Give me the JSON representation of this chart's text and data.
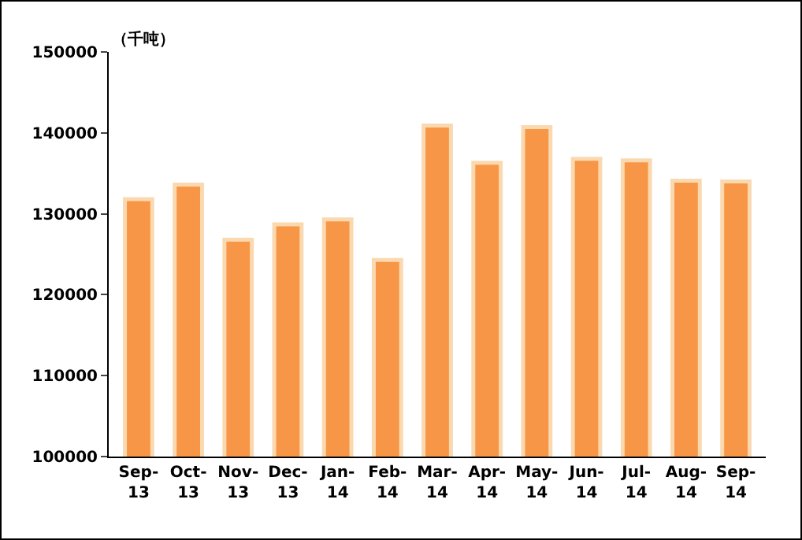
{
  "chart_data": {
    "type": "bar",
    "ylabel": "（千吨）",
    "categories": [
      "Sep-\n13",
      "Oct-\n13",
      "Nov-\n13",
      "Dec-\n13",
      "Jan-\n14",
      "Feb-\n14",
      "Mar-\n14",
      "Apr-\n14",
      "May-\n14",
      "Jun-\n14",
      "Jul-\n14",
      "Aug-\n14",
      "Sep-\n14"
    ],
    "values": [
      131800,
      133600,
      126800,
      128700,
      129300,
      124300,
      140900,
      136300,
      140700,
      136800,
      136600,
      134100,
      134000
    ],
    "color": "#f79646",
    "ylim": [
      100000,
      150000
    ],
    "yticks": [
      100000,
      110000,
      120000,
      130000,
      140000,
      150000
    ],
    "grid": false,
    "legend": false
  }
}
